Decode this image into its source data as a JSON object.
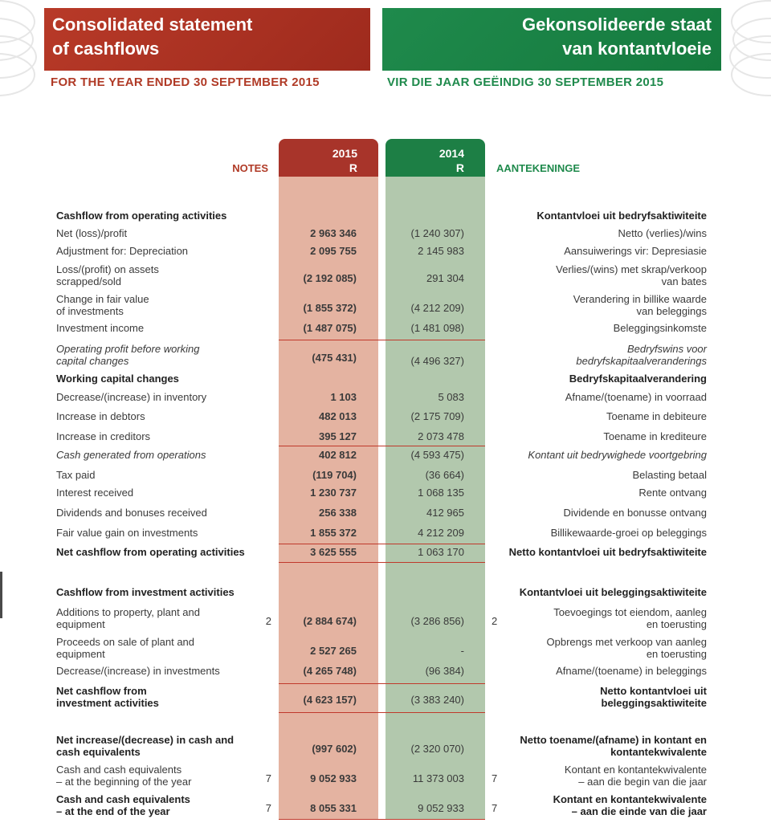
{
  "header": {
    "title_en_line1": "Consolidated statement",
    "title_en_line2": "of cashflows",
    "title_af_line1": "Gekonsolideerde staat",
    "title_af_line2": "van kontantvloeie",
    "subtitle_en": "FOR THE YEAR ENDED 30 SEPTEMBER 2015",
    "subtitle_af": "VIR DIE JAAR GEËINDIG 30 SEPTEMBER 2015"
  },
  "columns": {
    "notes": "NOTES",
    "aantekeninge": "AANTEKENINGE",
    "year1": "2015",
    "unit1": "R",
    "year2": "2014",
    "unit2": "R"
  },
  "rows": [
    {
      "en": "Cashflow from operating activities",
      "af": "Kontantvloei uit bedryfsaktiwiteite",
      "v15": "",
      "v14": "",
      "note": "",
      "style": "bold"
    },
    {
      "en": "Net (loss)/profit",
      "af": "Netto (verlies)/wins",
      "v15": "2 963 346",
      "v14": "(1 240 307)",
      "note": "",
      "style": ""
    },
    {
      "en": "Adjustment for: Depreciation",
      "af": "Aansuiwerings vir: Depresiasie",
      "v15": "2 095 755",
      "v14": "2 145 983",
      "note": "",
      "style": ""
    },
    {
      "en": "Loss/(profit) on assets",
      "en2": "scrapped/sold",
      "af": "Verlies/(wins) met skrap/verkoop",
      "af2": "van bates",
      "v15": "(2 192 085)",
      "v14": "291 304",
      "note": "",
      "style": ""
    },
    {
      "en": "Change in fair value",
      "en2": "of investments",
      "af": "Verandering in billike waarde",
      "af2": "van beleggings",
      "v15": "(1 855 372)",
      "v14": "(4 212 209)",
      "note": "",
      "style": ""
    },
    {
      "en": "Investment income",
      "af": "Beleggingsinkomste",
      "v15": "(1 487 075)",
      "v14": "(1 481 098)",
      "note": "",
      "style": ""
    },
    {
      "en": "Operating profit before working",
      "en2": "capital changes",
      "af": "Bedryfswins voor",
      "af2": "bedryfskapitaalveranderings",
      "v15": "(475 431)",
      "v14": "(4 496 327)",
      "note": "",
      "style": "ital"
    },
    {
      "en": "Working capital changes",
      "af": "Bedryfskapitaalverandering",
      "v15": "",
      "v14": "",
      "note": "",
      "style": "bold"
    },
    {
      "en": "Decrease/(increase) in inventory",
      "af": "Afname/(toename) in voorraad",
      "v15": "1 103",
      "v14": "5 083",
      "note": "",
      "style": ""
    },
    {
      "en": "Increase in debtors",
      "af": "Toename in debiteure",
      "v15": "482 013",
      "v14": "(2 175 709)",
      "note": "",
      "style": ""
    },
    {
      "en": "Increase in creditors",
      "af": "Toename in krediteure",
      "v15": "395 127",
      "v14": "2 073 478",
      "note": "",
      "style": ""
    },
    {
      "en": "Cash generated from operations",
      "af": "Kontant uit bedrywighede voortgebring",
      "v15": "402 812",
      "v14": "(4 593 475)",
      "note": "",
      "style": "ital"
    },
    {
      "en": "Tax paid",
      "af": "Belasting betaal",
      "v15": "(119 704)",
      "v14": "(36 664)",
      "note": "",
      "style": ""
    },
    {
      "en": "Interest received",
      "af": "Rente ontvang",
      "v15": "1 230 737",
      "v14": "1 068 135",
      "note": "",
      "style": ""
    },
    {
      "en": "Dividends and bonuses received",
      "af": "Dividende en bonusse ontvang",
      "v15": "256 338",
      "v14": "412 965",
      "note": "",
      "style": ""
    },
    {
      "en": "Fair value gain on investments",
      "af": "Billikewaarde-groei op beleggings",
      "v15": "1 855 372",
      "v14": "4 212 209",
      "note": "",
      "style": ""
    },
    {
      "en": "Net cashflow from operating activities",
      "af": "Netto kontantvloei uit bedryfsaktiwiteite",
      "v15": "3 625 555",
      "v14": "1 063 170",
      "note": "",
      "style": "bold"
    },
    {
      "en": "Cashflow from investment activities",
      "af": "Kontantvloei uit beleggingsaktiwiteite",
      "v15": "",
      "v14": "",
      "note": "",
      "style": "bold"
    },
    {
      "en": "Additions to property, plant and",
      "en2": "equipment",
      "af": "Toevoegings tot eiendom, aanleg",
      "af2": "en toerusting",
      "v15": "(2 884 674)",
      "v14": "(3 286 856)",
      "note": "2",
      "style": ""
    },
    {
      "en": "Proceeds on sale of plant and",
      "en2": "equipment",
      "af": "Opbrengs met verkoop van aanleg",
      "af2": "en toerusting",
      "v15": "2 527 265",
      "v14": "-",
      "note": "",
      "style": ""
    },
    {
      "en": "Decrease/(increase) in investments",
      "af": "Afname/(toename) in beleggings",
      "v15": "(4 265 748)",
      "v14": "(96 384)",
      "note": "",
      "style": ""
    },
    {
      "en": "Net cashflow from",
      "en2": "investment activities",
      "af": "Netto kontantvloei uit",
      "af2": "beleggingsaktiwiteite",
      "v15": "(4 623 157)",
      "v14": "(3 383 240)",
      "note": "",
      "style": "bold"
    },
    {
      "en": "Net increase/(decrease) in cash and",
      "en2": "cash equivalents",
      "af": "Netto toename/(afname) in kontant en",
      "af2": "kontantekwivalente",
      "v15": "(997 602)",
      "v14": "(2 320 070)",
      "note": "",
      "style": "bold"
    },
    {
      "en": "Cash and cash equivalents",
      "en2": "– at the beginning of the year",
      "af": "Kontant en kontantekwivalente",
      "af2": "– aan die begin van die jaar",
      "v15": "9 052 933",
      "v14": "11 373 003",
      "note": "7",
      "style": ""
    },
    {
      "en": "Cash and cash equivalents",
      "en2": "– at the end of the year",
      "af": "Kontant en kontantekwivalente",
      "af2": "– aan die einde van die jaar",
      "v15": "8 055 331",
      "v14": "9 052 933",
      "note": "7",
      "style": "bold"
    }
  ]
}
